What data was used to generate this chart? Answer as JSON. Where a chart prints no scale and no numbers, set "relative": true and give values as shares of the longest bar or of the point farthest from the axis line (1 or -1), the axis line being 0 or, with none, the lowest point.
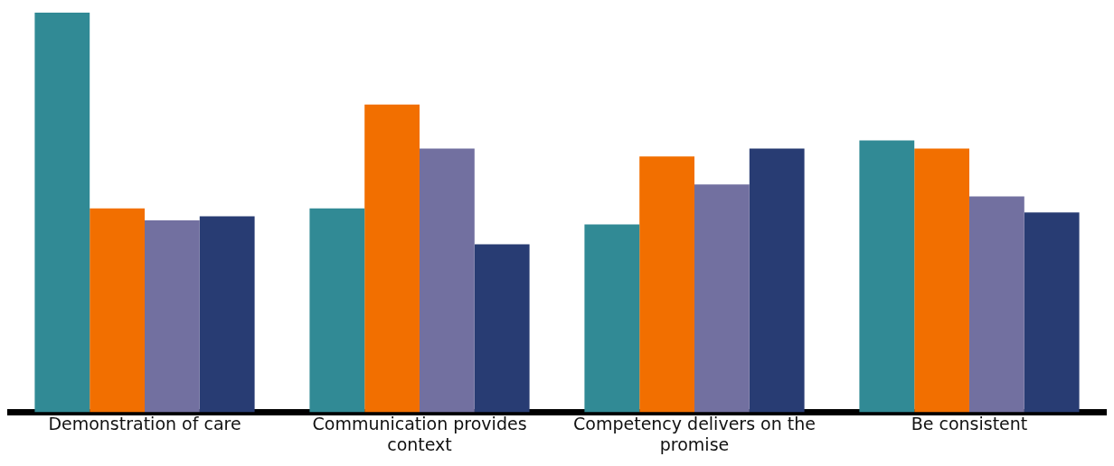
{
  "chart_data": {
    "type": "bar",
    "relative": true,
    "legend": false,
    "categories": [
      "Demonstration of care",
      "Communication provides context",
      "Competency delivers on the promise",
      "Be consistent"
    ],
    "series": [
      {
        "color": "#318a95",
        "values": [
          1,
          0.51,
          0.47,
          0.68
        ]
      },
      {
        "color": "#f26f00",
        "values": [
          0.51,
          0.77,
          0.64,
          0.66
        ]
      },
      {
        "color": "#7270a0",
        "values": [
          0.48,
          0.66,
          0.57,
          0.54
        ]
      },
      {
        "color": "#283c73",
        "values": [
          0.49,
          0.42,
          0.66,
          0.5
        ]
      }
    ]
  }
}
